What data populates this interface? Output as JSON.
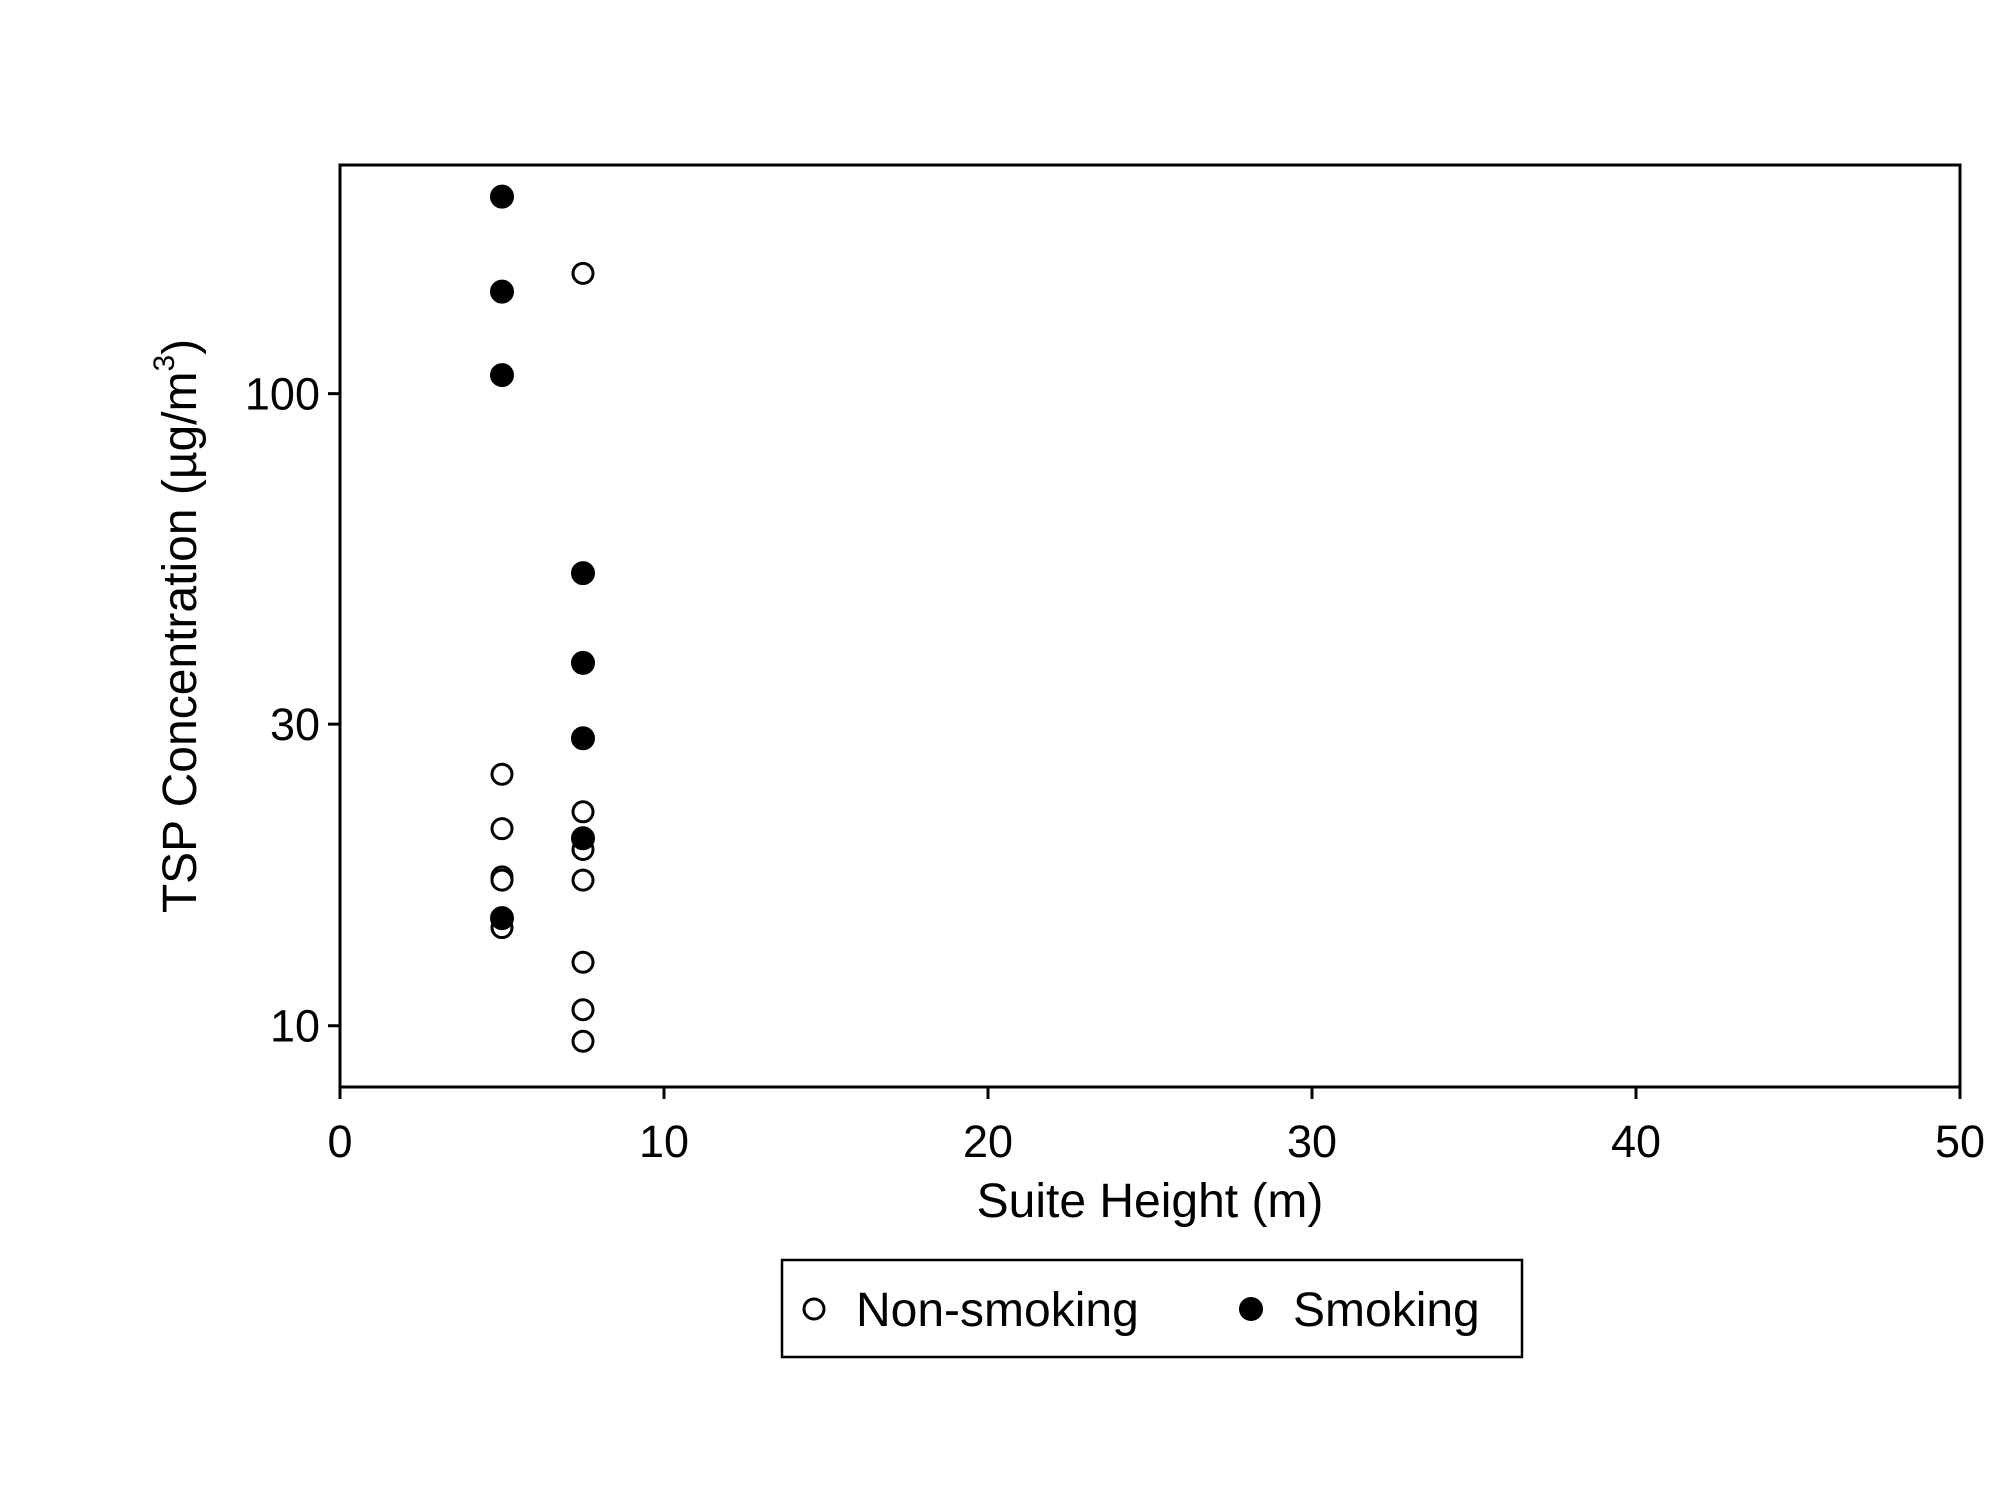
{
  "chart_data": {
    "type": "scatter",
    "xlabel": "Suite Height (m)",
    "ylabel": {
      "main": "TSP Concentration (µg/m",
      "superscript": "3",
      "close": ")"
    },
    "xlim": [
      0,
      50
    ],
    "ylim": [
      8,
      230
    ],
    "y_scale": "log",
    "x_ticks": [
      0,
      10,
      20,
      30,
      40,
      50
    ],
    "y_ticks": [
      10,
      30,
      100
    ],
    "grid": false,
    "legend_position": "bottom-center",
    "series": [
      {
        "name": "Non-smoking",
        "marker": "open-circle",
        "color": "#000000",
        "points": [
          {
            "x": 5,
            "y": 25
          },
          {
            "x": 5,
            "y": 20.5
          },
          {
            "x": 5,
            "y": 17.2
          },
          {
            "x": 5,
            "y": 17.0
          },
          {
            "x": 5,
            "y": 14.3
          },
          {
            "x": 7.5,
            "y": 155
          },
          {
            "x": 7.5,
            "y": 21.8
          },
          {
            "x": 7.5,
            "y": 19.0
          },
          {
            "x": 7.5,
            "y": 17.0
          },
          {
            "x": 7.5,
            "y": 12.6
          },
          {
            "x": 7.5,
            "y": 10.6
          },
          {
            "x": 7.5,
            "y": 9.45
          }
        ]
      },
      {
        "name": "Smoking",
        "marker": "filled-circle",
        "color": "#000000",
        "points": [
          {
            "x": 5,
            "y": 205
          },
          {
            "x": 5,
            "y": 145
          },
          {
            "x": 5,
            "y": 107
          },
          {
            "x": 5,
            "y": 14.8
          },
          {
            "x": 7.5,
            "y": 52
          },
          {
            "x": 7.5,
            "y": 37.5
          },
          {
            "x": 7.5,
            "y": 28.5
          },
          {
            "x": 7.5,
            "y": 19.8
          }
        ]
      }
    ]
  }
}
